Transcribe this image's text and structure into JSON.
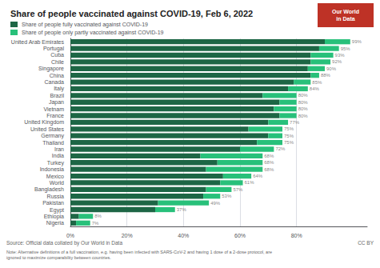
{
  "chart_data": {
    "type": "bar",
    "orientation": "horizontal",
    "stacked": true,
    "title": "Share of people vaccinated against COVID-19, Feb 6, 2022",
    "categories": [
      "United Arab Emirates",
      "Portugal",
      "Cuba",
      "Chile",
      "Singapore",
      "China",
      "Canada",
      "Italy",
      "Brazil",
      "Japan",
      "Vietnam",
      "France",
      "United Kingdom",
      "United States",
      "Germany",
      "Thailand",
      "Iran",
      "India",
      "Turkey",
      "Indonesia",
      "Mexico",
      "World",
      "Bangladesh",
      "Russia",
      "Pakistan",
      "Egypt",
      "Ethiopia",
      "Nigeria"
    ],
    "series": [
      {
        "name": "Share of people fully vaccinated against COVID-19",
        "color": "#1d6645",
        "values": [
          90,
          88,
          85,
          85,
          84,
          85,
          79,
          77,
          68,
          74,
          72,
          74,
          70,
          63,
          70,
          66,
          60,
          46,
          52,
          48,
          54,
          53,
          48,
          47,
          31,
          30,
          3,
          2
        ]
      },
      {
        "name": "Share of people only partly vaccinated against COVID-19",
        "color": "#28c07a",
        "values": [
          9,
          7,
          8,
          7,
          6,
          3,
          6,
          7,
          12,
          6,
          8,
          6,
          7,
          12,
          5,
          9,
          12,
          22,
          16,
          20,
          10,
          8,
          9,
          6,
          18,
          7,
          5,
          5
        ]
      }
    ],
    "totals": [
      99,
      95,
      93,
      92,
      90,
      88,
      85,
      84,
      80,
      80,
      80,
      80,
      77,
      75,
      75,
      75,
      72,
      68,
      68,
      68,
      64,
      61,
      57,
      53,
      49,
      37,
      8,
      7
    ],
    "total_labels": [
      "99%",
      "95%",
      "93%",
      "92%",
      "90%",
      "88%",
      "85%",
      "84%",
      "80%",
      "80%",
      "80%",
      "80%",
      "77%",
      "75%",
      "75%",
      "75%",
      "72%",
      "68%",
      "68%",
      "68%",
      "64%",
      "61%",
      "57%",
      "53%",
      "49%",
      "37%",
      "8%",
      "7%"
    ],
    "xlim": [
      0,
      105
    ],
    "xticks": [
      {
        "value": 0,
        "label": "0%"
      },
      {
        "value": 20,
        "label": "20%"
      },
      {
        "value": 40,
        "label": "40%"
      },
      {
        "value": 60,
        "label": "60%"
      },
      {
        "value": 80,
        "label": "80%"
      }
    ],
    "grid": true,
    "legend": "upper left",
    "logo_text": "Our World\nin Data",
    "source": "Source: Official data collated by Our World in Data",
    "note": "Note: Alternative definitions of a full vaccination, e.g. having been infected with SARS-CoV-2 and having 1 dose of a 2-dose protocol, are\nignored to maximize comparability between countries.",
    "credit": "CC BY"
  }
}
